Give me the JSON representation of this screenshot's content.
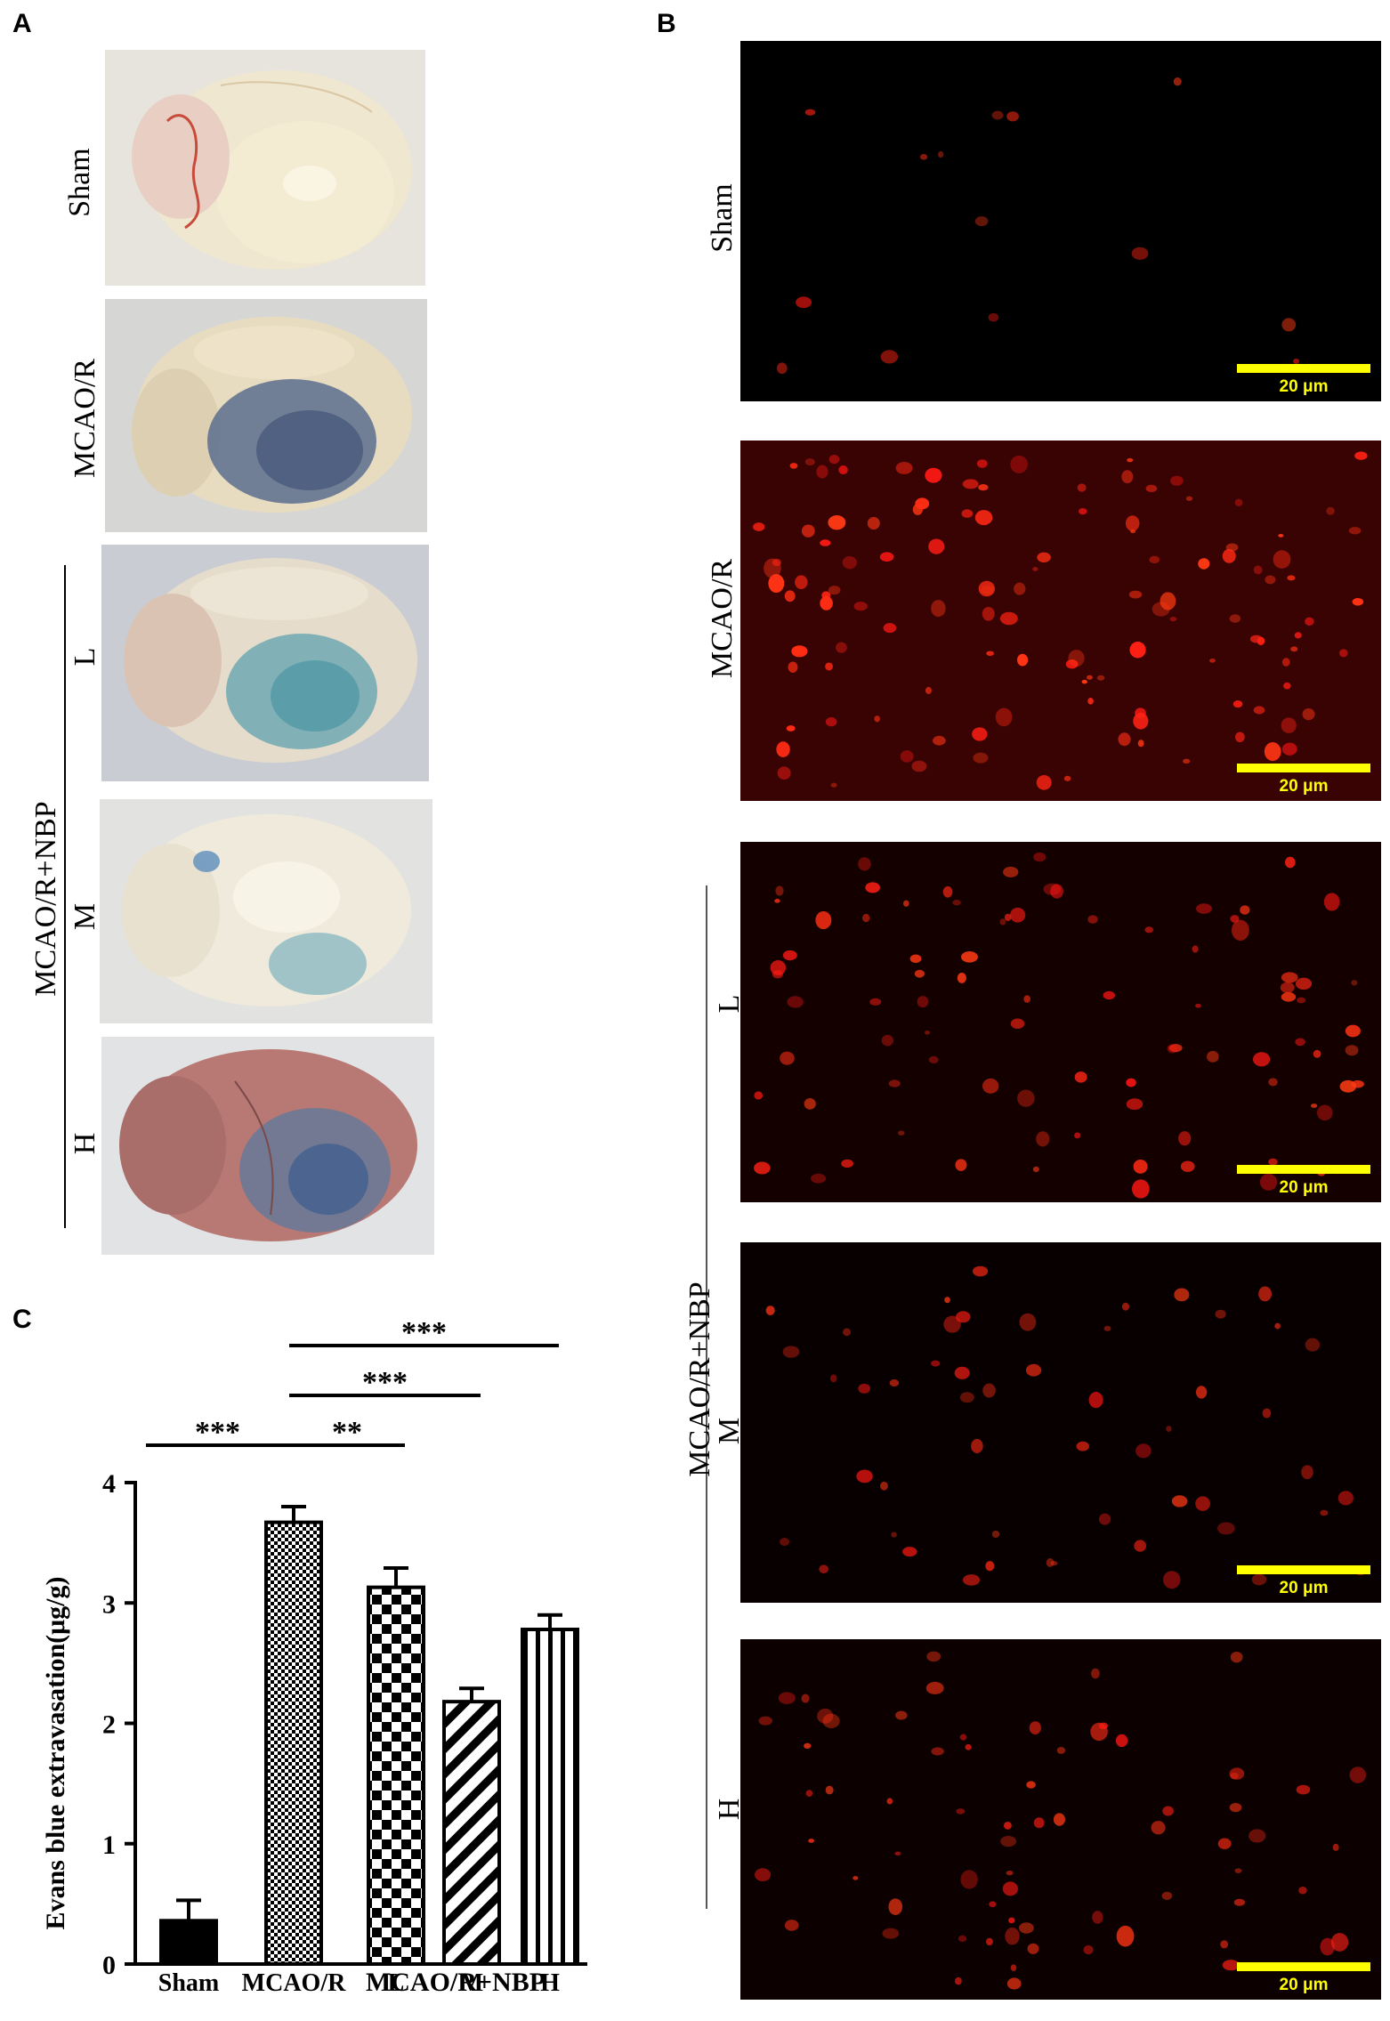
{
  "panels": {
    "A": {
      "letter": "A",
      "rows": [
        {
          "label": "Sham",
          "blue_intensity": 0.0
        },
        {
          "label": "MCAO/R",
          "blue_intensity": 0.9
        },
        {
          "label": "L",
          "blue_intensity": 0.7
        },
        {
          "label": "M",
          "blue_intensity": 0.4
        },
        {
          "label": "H",
          "blue_intensity": 0.6
        }
      ],
      "group_label": "MCAO/R+NBP"
    },
    "B": {
      "letter": "B",
      "rows": [
        {
          "label": "Sham",
          "scale_text": "20 μm",
          "cell_density": 0.05
        },
        {
          "label": "MCAO/R",
          "scale_text": "20 μm",
          "cell_density": 1.0
        },
        {
          "label": "L",
          "scale_text": "20 μm",
          "cell_density": 0.7
        },
        {
          "label": "M",
          "scale_text": "20 μm",
          "cell_density": 0.4
        },
        {
          "label": "H",
          "scale_text": "20 μm",
          "cell_density": 0.55
        }
      ],
      "group_label": "MCAO/R+NBP",
      "scale_color": "#ffff00"
    },
    "C": {
      "letter": "C"
    }
  },
  "chart_data": {
    "type": "bar",
    "categories": [
      "Sham",
      "MCAO/R",
      "L",
      "M",
      "H"
    ],
    "values": [
      0.36,
      3.67,
      3.13,
      2.18,
      2.78
    ],
    "errors": [
      0.17,
      0.13,
      0.16,
      0.11,
      0.12
    ],
    "ylabel": "Evans blue extravasation(μg/g)",
    "group_label": "MCAO/R+NBP",
    "ylim": [
      0,
      4
    ],
    "yticks": [
      0,
      1,
      2,
      3,
      4
    ],
    "patterns": [
      "solid",
      "fine-checker",
      "checker",
      "diagonal",
      "vertical"
    ],
    "significance": [
      {
        "from": "Sham",
        "to": "MCAO/R",
        "label": "***"
      },
      {
        "from": "MCAO/R",
        "to": "L",
        "label": "**"
      },
      {
        "from": "MCAO/R",
        "to": "M",
        "label": "***"
      },
      {
        "from": "MCAO/R",
        "to": "H",
        "label": "***"
      }
    ]
  }
}
